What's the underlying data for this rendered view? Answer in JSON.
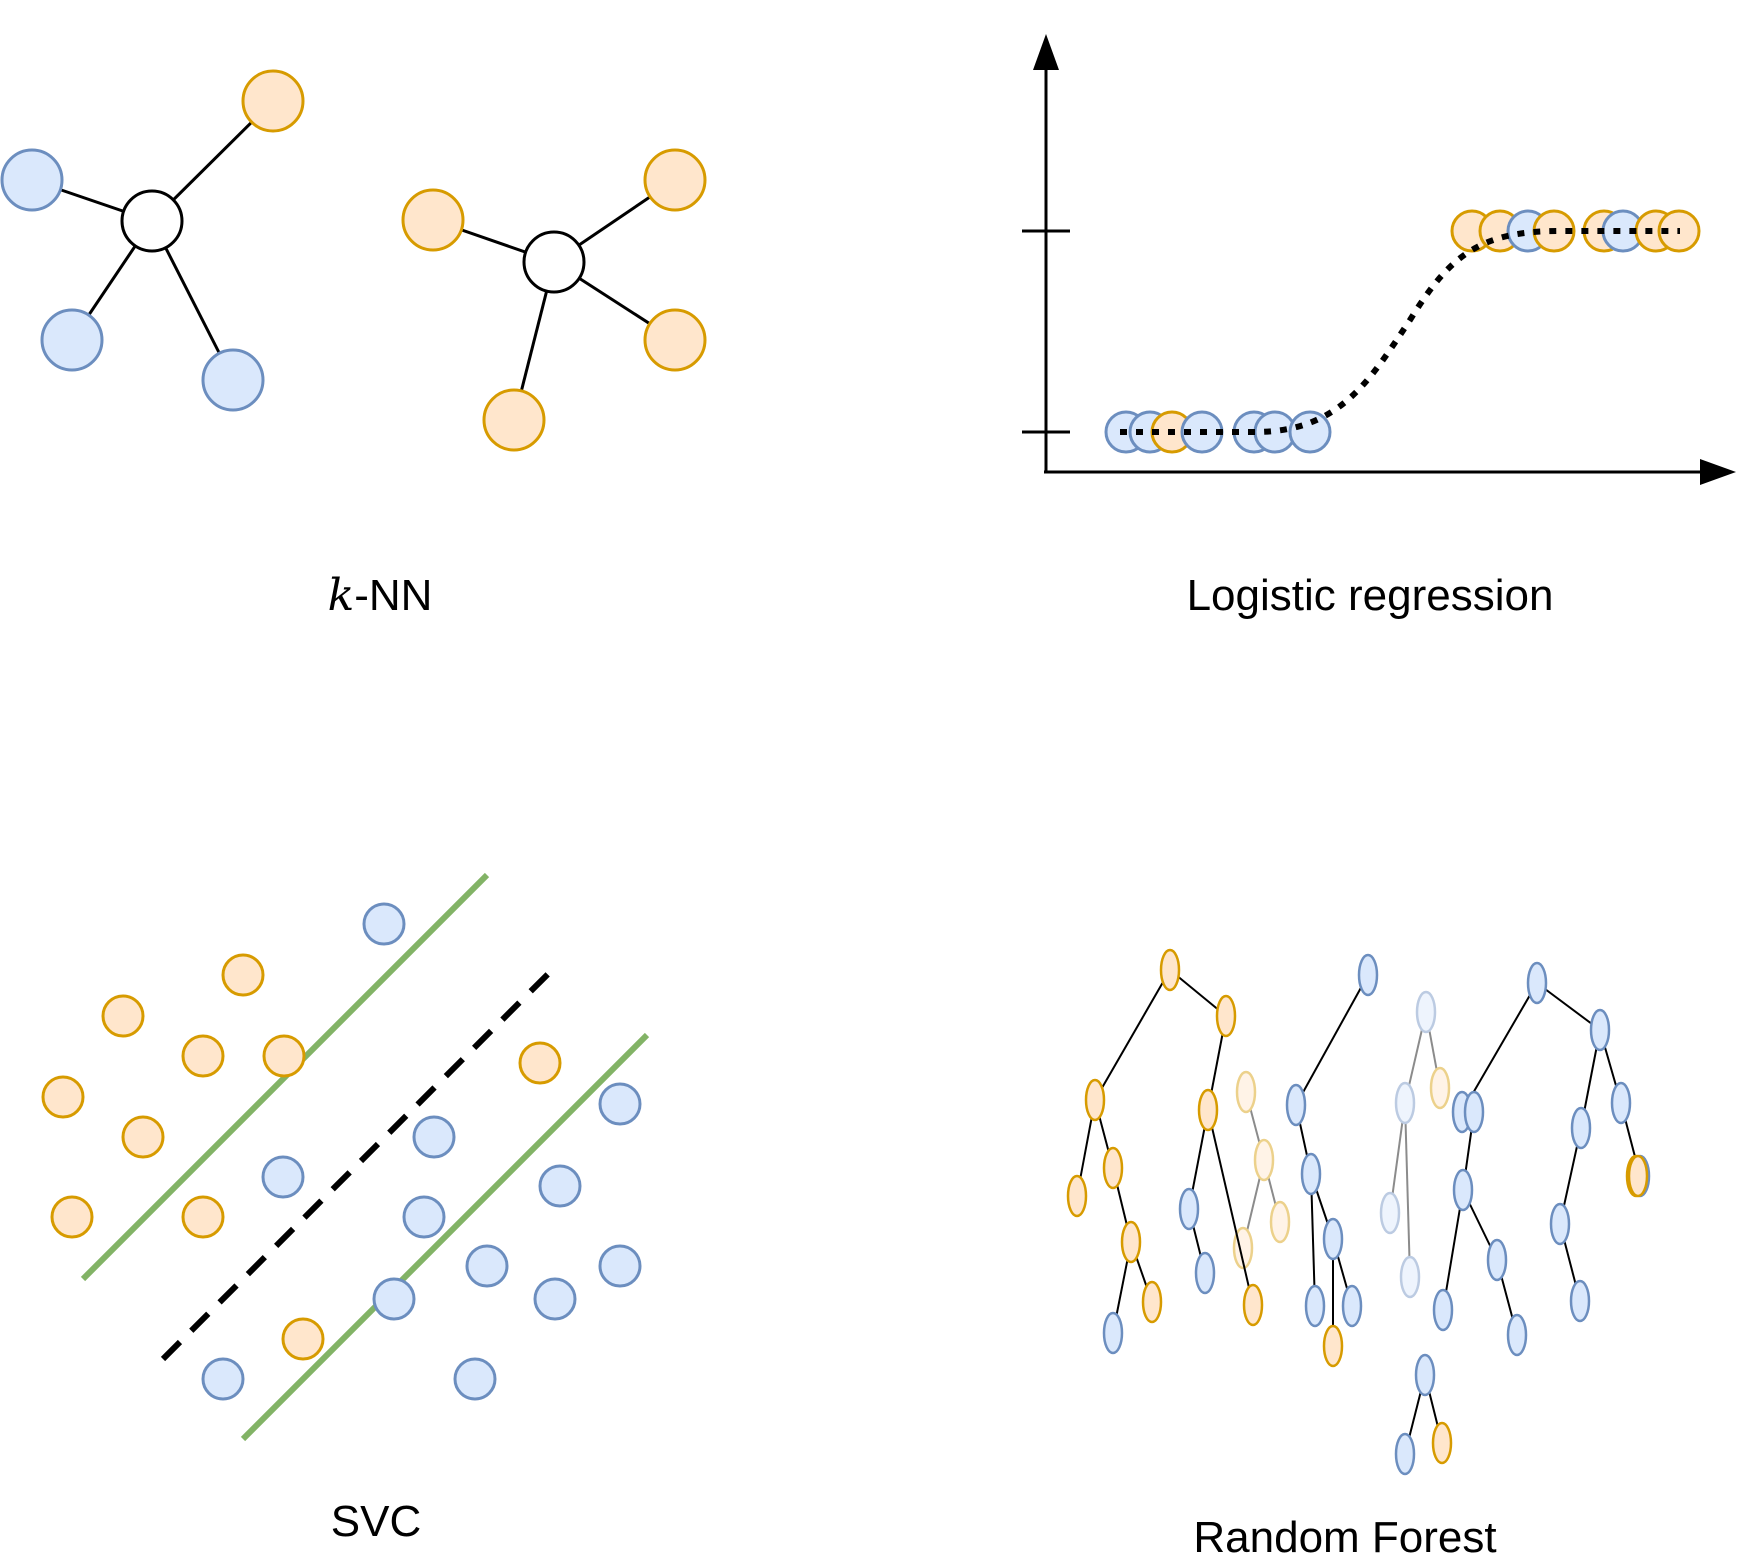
{
  "colors": {
    "blue_fill": "#dae8fc",
    "blue_stroke": "#6c8ebf",
    "orange_fill": "#ffe6cc",
    "orange_stroke": "#d79b00",
    "green_line": "#82b366",
    "black": "#000000",
    "white": "#ffffff"
  },
  "panels": {
    "knn": {
      "caption_math": "k",
      "caption_rest": "-NN"
    },
    "logistic_regression": {
      "caption": "Logistic regression"
    },
    "svc": {
      "caption": "SVC"
    },
    "random_forest": {
      "caption": "Random Forest"
    }
  }
}
